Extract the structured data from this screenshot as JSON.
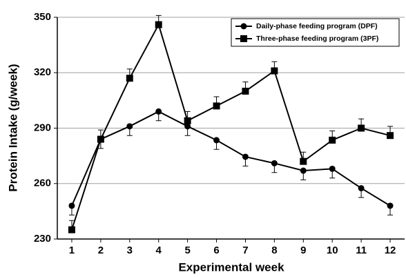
{
  "chart_data": {
    "type": "line",
    "x_label": "Experimental week",
    "y_label": "Protein Intake (g/week)",
    "x": [
      1,
      2,
      3,
      4,
      5,
      6,
      7,
      8,
      9,
      10,
      11,
      12
    ],
    "xlim": [
      0.5,
      12.5
    ],
    "xticks": [
      1,
      2,
      3,
      4,
      5,
      6,
      7,
      8,
      9,
      10,
      11,
      12
    ],
    "ylim": [
      230,
      350
    ],
    "yticks": [
      230,
      260,
      290,
      320,
      350
    ],
    "grid": true,
    "legend": "top-right",
    "series": [
      {
        "name": "Daily-phase feeding program (DPF)",
        "color": "#000000",
        "marker": "circle",
        "error_direction": "down",
        "values": [
          248,
          284,
          291,
          299,
          291,
          283.5,
          274.5,
          271,
          267,
          268,
          257.5,
          248
        ],
        "errors": [
          5,
          5,
          5,
          5,
          5,
          5,
          5,
          5,
          5,
          5,
          5,
          5
        ]
      },
      {
        "name": "Three-phase feeding program (3PF)",
        "color": "#000000",
        "marker": "square",
        "error_direction": "up",
        "values": [
          235,
          284,
          317,
          346,
          294,
          302,
          310,
          321,
          272,
          283.5,
          290,
          286
        ],
        "errors": [
          5,
          5,
          5,
          5,
          5,
          5,
          5,
          5,
          5,
          5,
          5,
          5
        ]
      }
    ]
  }
}
